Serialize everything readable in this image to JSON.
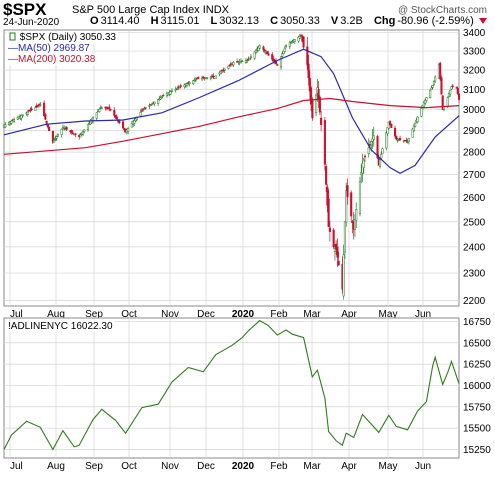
{
  "header": {
    "ticker": "$SPX",
    "name": "S&P 500 Large Cap Index",
    "exchange": "INDX",
    "date": "24-Jun-2020",
    "open_label": "O",
    "open": "3114.40",
    "high_label": "H",
    "high": "3115.01",
    "low_label": "L",
    "low": "3032.13",
    "close_label": "C",
    "close": "3050.33",
    "volume_label": "V",
    "volume": "3.2B",
    "change_label": "Chg",
    "change": "-80.96 (-2.59%)",
    "credit": "@ StockCharts.com"
  },
  "legend": {
    "price": "$SPX (Daily) 3050.33",
    "ma50": "MA(50) 2969.87",
    "ma200": "MA(200) 3020.38",
    "breadth": "!ADLINENYC 16022.30"
  },
  "colors": {
    "ma50": "#2a2aa6",
    "ma200": "#c8102e",
    "candle_up": "#1a7a1a",
    "candle_down": "#c8102e",
    "adline": "#2e7d1e",
    "grid": "#d4d4d4"
  },
  "x_axis": {
    "months": [
      "Jul",
      "Aug",
      "Sep",
      "Oct",
      "Nov",
      "Dec",
      "2020",
      "Feb",
      "Mar",
      "Apr",
      "May",
      "Jun"
    ],
    "bold_labels": [
      "2020"
    ]
  },
  "chart_data": [
    {
      "type": "candlestick",
      "title": "$SPX S&P 500 Large Cap Index",
      "x_range": [
        "2019-06-27",
        "2020-06-24"
      ],
      "y_ticks": [
        2200,
        2300,
        2400,
        2500,
        2600,
        2700,
        2800,
        2900,
        3000,
        3100,
        3200,
        3300,
        3400
      ],
      "ylim": [
        2180,
        3415
      ],
      "y_scale": "log",
      "grid": true,
      "price_anchors": {
        "x": [
          "2019-06-27",
          "2019-07-15",
          "2019-07-26",
          "2019-08-05",
          "2019-08-13",
          "2019-08-26",
          "2019-09-12",
          "2019-09-19",
          "2019-10-02",
          "2019-10-15",
          "2019-11-04",
          "2019-11-28",
          "2019-12-12",
          "2019-12-27",
          "2020-01-08",
          "2020-01-17",
          "2020-01-31",
          "2020-02-07",
          "2020-02-19",
          "2020-02-24",
          "2020-02-28",
          "2020-03-03",
          "2020-03-09",
          "2020-03-12",
          "2020-03-16",
          "2020-03-18",
          "2020-03-23",
          "2020-03-26",
          "2020-04-01",
          "2020-04-08",
          "2020-04-17",
          "2020-04-21",
          "2020-04-29",
          "2020-05-05",
          "2020-05-14",
          "2020-05-27",
          "2020-06-03",
          "2020-06-08",
          "2020-06-11",
          "2020-06-15",
          "2020-06-18",
          "2020-06-22",
          "2020-06-24"
        ],
        "y": [
          2925,
          2985,
          3025,
          2845,
          2915,
          2870,
          3010,
          3006,
          2895,
          2995,
          3080,
          3155,
          3165,
          3240,
          3252,
          3330,
          3225,
          3330,
          3385,
          3225,
          2960,
          3110,
          2745,
          2480,
          2400,
          2390,
          2240,
          2630,
          2470,
          2750,
          2875,
          2740,
          2940,
          2860,
          2850,
          3035,
          3120,
          3230,
          3000,
          3060,
          3115,
          3110,
          3050
        ]
      },
      "series": [
        {
          "name": "MA(50)",
          "x": [
            "2019-06-27",
            "2019-07-31",
            "2019-08-31",
            "2019-09-30",
            "2019-10-31",
            "2019-11-30",
            "2019-12-31",
            "2020-01-31",
            "2020-02-21",
            "2020-03-06",
            "2020-03-16",
            "2020-03-31",
            "2020-04-15",
            "2020-04-30",
            "2020-05-08",
            "2020-05-20",
            "2020-06-05",
            "2020-06-24"
          ],
          "values": [
            2880,
            2930,
            2945,
            2950,
            2985,
            3060,
            3145,
            3250,
            3310,
            3270,
            3180,
            2960,
            2810,
            2730,
            2705,
            2740,
            2870,
            2970
          ]
        },
        {
          "name": "MA(200)",
          "x": [
            "2019-06-27",
            "2019-08-31",
            "2019-09-30",
            "2019-10-31",
            "2019-11-30",
            "2019-12-31",
            "2020-01-31",
            "2020-02-21",
            "2020-03-13",
            "2020-03-31",
            "2020-04-30",
            "2020-05-29",
            "2020-06-24"
          ],
          "values": [
            2790,
            2820,
            2850,
            2885,
            2920,
            2965,
            3005,
            3045,
            3055,
            3040,
            3020,
            3010,
            3020
          ]
        }
      ]
    },
    {
      "type": "line",
      "title": "!ADLINENYC",
      "y_ticks": [
        15250,
        15500,
        15750,
        16000,
        16250,
        16500,
        16750
      ],
      "ylim": [
        15150,
        16790
      ],
      "grid": true,
      "series": [
        {
          "name": "!ADLINENYC",
          "x": [
            "2019-06-27",
            "2019-07-03",
            "2019-07-15",
            "2019-07-26",
            "2019-08-05",
            "2019-08-13",
            "2019-08-22",
            "2019-08-26",
            "2019-09-06",
            "2019-09-13",
            "2019-09-24",
            "2019-10-02",
            "2019-10-15",
            "2019-10-28",
            "2019-11-08",
            "2019-11-21",
            "2019-12-03",
            "2019-12-13",
            "2019-12-26",
            "2020-01-03",
            "2020-01-08",
            "2020-01-17",
            "2020-01-24",
            "2020-01-31",
            "2020-02-07",
            "2020-02-12",
            "2020-02-21",
            "2020-02-28",
            "2020-03-03",
            "2020-03-09",
            "2020-03-12",
            "2020-03-18",
            "2020-03-23",
            "2020-03-26",
            "2020-04-01",
            "2020-04-08",
            "2020-04-21",
            "2020-04-29",
            "2020-05-05",
            "2020-05-14",
            "2020-05-22",
            "2020-05-29",
            "2020-06-03",
            "2020-06-05",
            "2020-06-11",
            "2020-06-15",
            "2020-06-18",
            "2020-06-24"
          ],
          "values": [
            15250,
            15420,
            15580,
            15510,
            15250,
            15470,
            15280,
            15300,
            15600,
            15720,
            15590,
            15440,
            15740,
            15780,
            16040,
            16210,
            16160,
            16360,
            16470,
            16560,
            16640,
            16760,
            16700,
            16590,
            16650,
            16600,
            16560,
            16100,
            16180,
            15850,
            15460,
            15350,
            15300,
            15440,
            15390,
            15660,
            15450,
            15650,
            15520,
            15480,
            15700,
            15810,
            16230,
            16330,
            16010,
            16150,
            16280,
            16020
          ]
        }
      ]
    }
  ]
}
